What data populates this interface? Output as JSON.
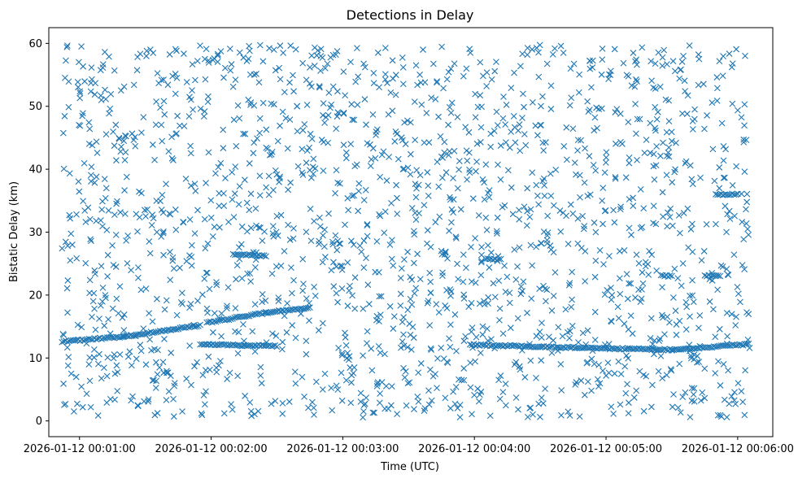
{
  "chart_data": {
    "type": "scatter",
    "title": "Detections in Delay",
    "xlabel": "Time (UTC)",
    "ylabel": "Bistatic Delay (km)",
    "marker": "x",
    "color": "#1f77b4",
    "grid": false,
    "legend": "none",
    "x_unit": "time (HH:MM:SS, UTC, 2026-01-12)",
    "xlim": [
      "2026-01-12 00:00:46",
      "2026-01-12 00:06:16"
    ],
    "ylim": [
      -2.5,
      62.5
    ],
    "x_ticks": [
      "2026-01-12 00:01:00",
      "2026-01-12 00:02:00",
      "2026-01-12 00:03:00",
      "2026-01-12 00:04:00",
      "2026-01-12 00:05:00",
      "2026-01-12 00:06:00"
    ],
    "y_ticks": [
      "0",
      "10",
      "20",
      "30",
      "40",
      "50",
      "60"
    ],
    "series": [
      {
        "kind": "target tracks",
        "tracks": [
          [
            [
              "00:00:52",
              12.6
            ],
            [
              "00:01:20",
              13.4
            ],
            [
              "00:01:55",
              15.2
            ]
          ],
          [
            [
              "00:01:55",
              12.2
            ],
            [
              "00:02:15",
              12.0
            ],
            [
              "00:02:30",
              11.9
            ]
          ],
          [
            [
              "00:01:58",
              15.6
            ],
            [
              "00:02:25",
              17.2
            ],
            [
              "00:02:45",
              18.0
            ]
          ],
          [
            [
              "00:02:10",
              26.5
            ],
            [
              "00:02:25",
              26.2
            ]
          ],
          [
            [
              "00:03:58",
              12.1
            ],
            [
              "00:04:50",
              11.6
            ],
            [
              "00:05:30",
              11.3
            ],
            [
              "00:06:05",
              12.2
            ]
          ],
          [
            [
              "00:04:05",
              25.8
            ],
            [
              "00:04:12",
              25.6
            ]
          ],
          [
            [
              "00:05:25",
              23.1
            ],
            [
              "00:05:30",
              23.0
            ]
          ],
          [
            [
              "00:05:45",
              23.1
            ],
            [
              "00:05:52",
              23.0
            ]
          ],
          [
            [
              "00:05:50",
              36.0
            ],
            [
              "00:06:00",
              36.0
            ]
          ]
        ]
      },
      {
        "kind": "clutter",
        "distribution": "uniform",
        "count": 1800,
        "xlim": [
          "00:00:52",
          "00:06:06"
        ],
        "ylim": [
          0.5,
          59.8
        ]
      }
    ]
  }
}
